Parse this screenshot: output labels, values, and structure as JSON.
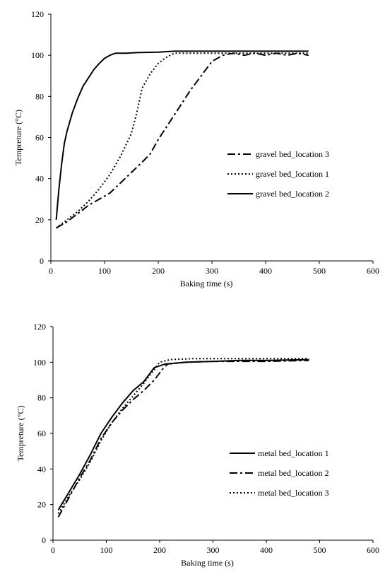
{
  "chart_data": [
    {
      "type": "line",
      "xlabel": "Baking time (s)",
      "ylabel": "Tempreture (°C)",
      "xlim": [
        0,
        600
      ],
      "ylim": [
        0,
        120
      ],
      "xticks": [
        "0",
        "100",
        "200",
        "300",
        "400",
        "500",
        "600"
      ],
      "yticks": [
        "0",
        "20",
        "40",
        "60",
        "80",
        "100",
        "120"
      ],
      "grid": false,
      "legend_position": "right",
      "series": [
        {
          "name": "gravel bed_location 3",
          "style": "dashdot",
          "color": "#000000",
          "points": [
            [
              10,
              16
            ],
            [
              30,
              19
            ],
            [
              50,
              23
            ],
            [
              70,
              27
            ],
            [
              90,
              30
            ],
            [
              110,
              33
            ],
            [
              130,
              38
            ],
            [
              150,
              43
            ],
            [
              170,
              48
            ],
            [
              185,
              52
            ],
            [
              200,
              59
            ],
            [
              220,
              67
            ],
            [
              240,
              75
            ],
            [
              260,
              83
            ],
            [
              280,
              90
            ],
            [
              300,
              97
            ],
            [
              320,
              100
            ],
            [
              340,
              101
            ],
            [
              360,
              100
            ],
            [
              380,
              101
            ],
            [
              400,
              100
            ],
            [
              420,
              101
            ],
            [
              440,
              100
            ],
            [
              460,
              101
            ],
            [
              480,
              100
            ]
          ]
        },
        {
          "name": "gravel bed_location 1",
          "style": "dotted",
          "color": "#000000",
          "points": [
            [
              10,
              16
            ],
            [
              30,
              20
            ],
            [
              50,
              24
            ],
            [
              70,
              29
            ],
            [
              90,
              35
            ],
            [
              110,
              42
            ],
            [
              130,
              51
            ],
            [
              150,
              62
            ],
            [
              160,
              72
            ],
            [
              170,
              84
            ],
            [
              185,
              91
            ],
            [
              200,
              96
            ],
            [
              215,
              99
            ],
            [
              230,
              101
            ],
            [
              260,
              101
            ],
            [
              300,
              101
            ],
            [
              350,
              101
            ],
            [
              400,
              101
            ],
            [
              450,
              101
            ],
            [
              480,
              101
            ]
          ]
        },
        {
          "name": "gravel bed_location 2",
          "style": "solid",
          "color": "#000000",
          "points": [
            [
              10,
              20
            ],
            [
              15,
              35
            ],
            [
              20,
              47
            ],
            [
              25,
              57
            ],
            [
              30,
              63
            ],
            [
              40,
              72
            ],
            [
              50,
              79
            ],
            [
              60,
              85
            ],
            [
              70,
              89
            ],
            [
              80,
              93
            ],
            [
              90,
              96
            ],
            [
              100,
              98.5
            ],
            [
              110,
              100
            ],
            [
              120,
              101
            ],
            [
              140,
              101
            ],
            [
              160,
              101.3
            ],
            [
              200,
              101.5
            ],
            [
              230,
              102
            ],
            [
              300,
              102
            ],
            [
              400,
              102
            ],
            [
              480,
              102
            ]
          ]
        }
      ]
    },
    {
      "type": "line",
      "xlabel": "Baking time (s)",
      "ylabel": "Tempreture (°C)",
      "xlim": [
        0,
        600
      ],
      "ylim": [
        0,
        120
      ],
      "xticks": [
        "0",
        "100",
        "200",
        "300",
        "400",
        "500",
        "600"
      ],
      "yticks": [
        "0",
        "20",
        "40",
        "60",
        "80",
        "100",
        "120"
      ],
      "grid": false,
      "legend_position": "right",
      "series": [
        {
          "name": "metal bed_location 1",
          "style": "solid",
          "color": "#000000",
          "points": [
            [
              10,
              17
            ],
            [
              30,
              27
            ],
            [
              50,
              37
            ],
            [
              70,
              48
            ],
            [
              90,
              60
            ],
            [
              110,
              69
            ],
            [
              130,
              77
            ],
            [
              150,
              84
            ],
            [
              170,
              89
            ],
            [
              180,
              93
            ],
            [
              190,
              97
            ],
            [
              210,
              99
            ],
            [
              250,
              100
            ],
            [
              300,
              100.5
            ],
            [
              350,
              101
            ],
            [
              400,
              101
            ],
            [
              480,
              101.5
            ]
          ]
        },
        {
          "name": "metal bed_location 2",
          "style": "dashdot",
          "color": "#000000",
          "points": [
            [
              10,
              13
            ],
            [
              30,
              24
            ],
            [
              50,
              35
            ],
            [
              70,
              45
            ],
            [
              90,
              57
            ],
            [
              110,
              66
            ],
            [
              130,
              73
            ],
            [
              150,
              79
            ],
            [
              170,
              84
            ],
            [
              190,
              90
            ],
            [
              205,
              96
            ],
            [
              215,
              99
            ],
            [
              250,
              100
            ],
            [
              300,
              100.5
            ],
            [
              350,
              100.5
            ],
            [
              400,
              100.5
            ],
            [
              480,
              101
            ]
          ]
        },
        {
          "name": "metal bed_location 3",
          "style": "dotted",
          "color": "#000000",
          "points": [
            [
              10,
              15
            ],
            [
              30,
              25
            ],
            [
              50,
              34
            ],
            [
              70,
              44
            ],
            [
              90,
              56
            ],
            [
              110,
              66
            ],
            [
              130,
              74
            ],
            [
              150,
              81
            ],
            [
              170,
              88
            ],
            [
              185,
              94
            ],
            [
              200,
              100
            ],
            [
              220,
              101.5
            ],
            [
              260,
              102
            ],
            [
              300,
              102
            ],
            [
              350,
              102
            ],
            [
              400,
              102
            ],
            [
              480,
              102
            ]
          ]
        }
      ]
    }
  ]
}
